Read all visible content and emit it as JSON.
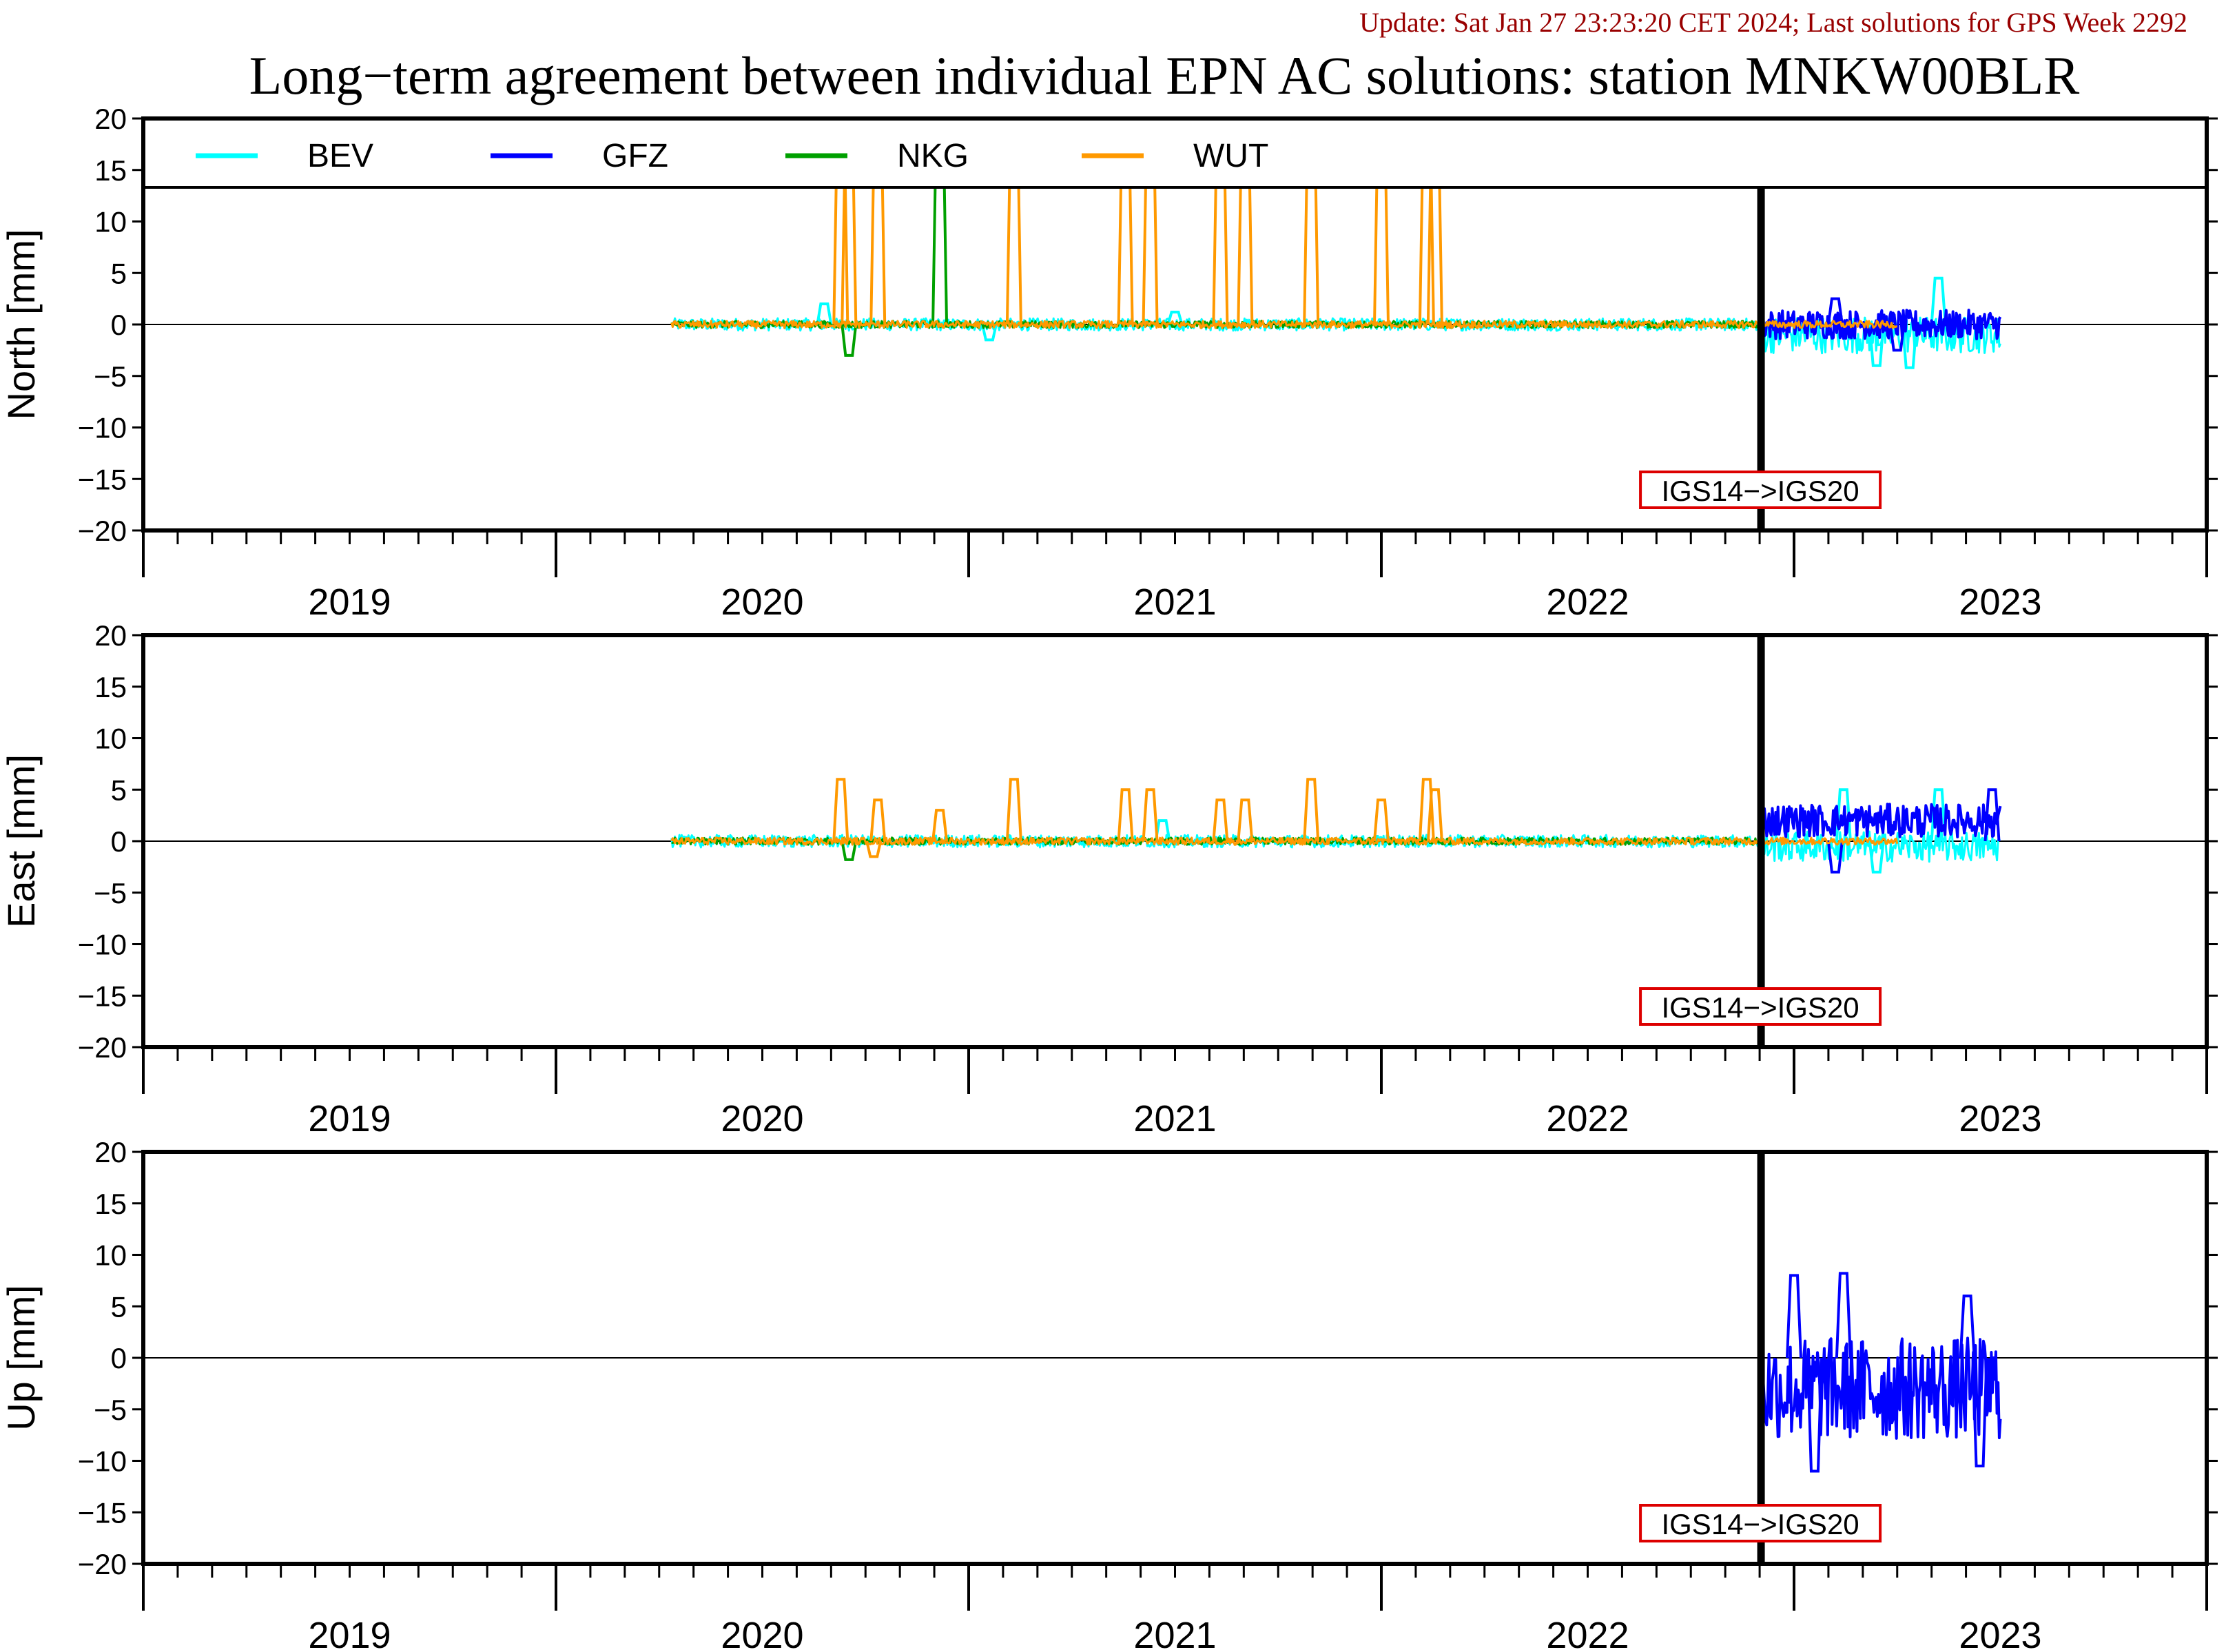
{
  "update_text": "Update: Sat Jan 27 23:23:20 CET 2024; Last solutions for GPS Week 2292",
  "title": "Long−term agreement between individual EPN AC solutions: station MNKW00BLR",
  "colors": {
    "BEV": "#00ffff",
    "GFZ": "#0000ff",
    "NKG": "#00a000",
    "WUT": "#ff9900",
    "update_text": "#990000",
    "marker_box": "#dd0000"
  },
  "chart_data": {
    "type": "line",
    "legend": {
      "placement": "top-left of first panel",
      "entries": [
        "BEV",
        "GFZ",
        "NKG",
        "WUT"
      ]
    },
    "x_axis": {
      "xlim": [
        2018.5,
        2023.5
      ],
      "ticks": [
        2019,
        2020,
        2021,
        2022,
        2023
      ],
      "tick_labels": [
        "2019",
        "2020",
        "2021",
        "2022",
        "2023"
      ]
    },
    "reference_frame_change": {
      "x": 2022.42,
      "label": "IGS14−>IGS20"
    },
    "panels": [
      {
        "name": "north",
        "ylabel": "North [mm]",
        "ylim": [
          -20,
          20
        ],
        "yticks": [
          20,
          15,
          10,
          5,
          0,
          -5,
          -10,
          -15,
          -20
        ],
        "series": [
          {
            "name": "BEV",
            "segments": [
              {
                "x0": 2019.78,
                "x1": 2022.42,
                "mean": 0.0,
                "amp": 0.6
              },
              {
                "x0": 2022.42,
                "x1": 2023.0,
                "mean": -1.0,
                "amp": 1.8
              }
            ],
            "spikes": [
              [
                2020.15,
                2.0
              ],
              [
                2020.55,
                -1.5
              ],
              [
                2021.0,
                1.2
              ],
              [
                2022.7,
                -4.0
              ],
              [
                2022.85,
                4.5
              ],
              [
                2022.78,
                -4.2
              ]
            ]
          },
          {
            "name": "GFZ",
            "segments": [
              {
                "x0": 2022.42,
                "x1": 2023.0,
                "mean": 0.0,
                "amp": 1.4
              }
            ],
            "spikes": [
              [
                2022.6,
                2.5
              ],
              [
                2022.75,
                -2.5
              ]
            ]
          },
          {
            "name": "NKG",
            "segments": [
              {
                "x0": 2019.78,
                "x1": 2022.42,
                "mean": 0.0,
                "amp": 0.35
              }
            ],
            "spikes": [
              [
                2020.21,
                -3.0
              ],
              [
                2020.43,
                20.0
              ]
            ]
          },
          {
            "name": "WUT",
            "segments": [
              {
                "x0": 2019.78,
                "x1": 2022.75,
                "mean": 0.0,
                "amp": 0.35
              }
            ],
            "spikes": [
              [
                2020.19,
                20.0
              ],
              [
                2020.21,
                20.0
              ],
              [
                2020.28,
                20.0
              ],
              [
                2020.61,
                20.0
              ],
              [
                2020.88,
                20.0
              ],
              [
                2020.94,
                20.0
              ],
              [
                2021.11,
                20.0
              ],
              [
                2021.17,
                20.0
              ],
              [
                2021.33,
                20.0
              ],
              [
                2021.5,
                20.0
              ],
              [
                2021.61,
                20.0
              ],
              [
                2021.63,
                20.0
              ]
            ]
          }
        ]
      },
      {
        "name": "east",
        "ylabel": "East [mm]",
        "ylim": [
          -20,
          20
        ],
        "yticks": [
          20,
          15,
          10,
          5,
          0,
          -5,
          -10,
          -15,
          -20
        ],
        "series": [
          {
            "name": "BEV",
            "segments": [
              {
                "x0": 2019.78,
                "x1": 2022.42,
                "mean": 0.0,
                "amp": 0.6
              },
              {
                "x0": 2022.42,
                "x1": 2023.0,
                "mean": -0.5,
                "amp": 1.5
              }
            ],
            "spikes": [
              [
                2020.97,
                2.0
              ],
              [
                2022.62,
                5.0
              ],
              [
                2022.85,
                5.0
              ],
              [
                2022.7,
                -3.0
              ]
            ]
          },
          {
            "name": "GFZ",
            "segments": [
              {
                "x0": 2022.42,
                "x1": 2023.0,
                "mean": 2.0,
                "amp": 1.6
              }
            ],
            "spikes": [
              [
                2022.98,
                5.0
              ],
              [
                2022.6,
                -3.0
              ]
            ]
          },
          {
            "name": "NKG",
            "segments": [
              {
                "x0": 2019.78,
                "x1": 2022.42,
                "mean": 0.0,
                "amp": 0.35
              }
            ],
            "spikes": [
              [
                2020.21,
                -1.8
              ]
            ]
          },
          {
            "name": "WUT",
            "segments": [
              {
                "x0": 2019.78,
                "x1": 2022.75,
                "mean": 0.0,
                "amp": 0.35
              }
            ],
            "spikes": [
              [
                2020.19,
                6.0
              ],
              [
                2020.28,
                4.0
              ],
              [
                2020.43,
                3.0
              ],
              [
                2020.61,
                6.0
              ],
              [
                2020.88,
                5.0
              ],
              [
                2020.94,
                5.0
              ],
              [
                2021.11,
                4.0
              ],
              [
                2021.17,
                4.0
              ],
              [
                2021.33,
                6.0
              ],
              [
                2021.5,
                4.0
              ],
              [
                2021.61,
                6.0
              ],
              [
                2021.63,
                5.0
              ],
              [
                2020.27,
                -1.5
              ]
            ]
          }
        ]
      },
      {
        "name": "up",
        "ylabel": "Up [mm]",
        "ylim": [
          -20,
          20
        ],
        "yticks": [
          20,
          15,
          10,
          5,
          0,
          -5,
          -10,
          -15,
          -20
        ],
        "series": [
          {
            "name": "GFZ",
            "segments": [
              {
                "x0": 2022.42,
                "x1": 2023.0,
                "mean": -3.0,
                "amp": 5.0
              }
            ],
            "spikes": [
              [
                2022.5,
                8.0
              ],
              [
                2022.62,
                8.2
              ],
              [
                2022.55,
                -11.0
              ],
              [
                2022.95,
                -10.5
              ],
              [
                2022.92,
                6.0
              ]
            ]
          }
        ]
      }
    ]
  }
}
